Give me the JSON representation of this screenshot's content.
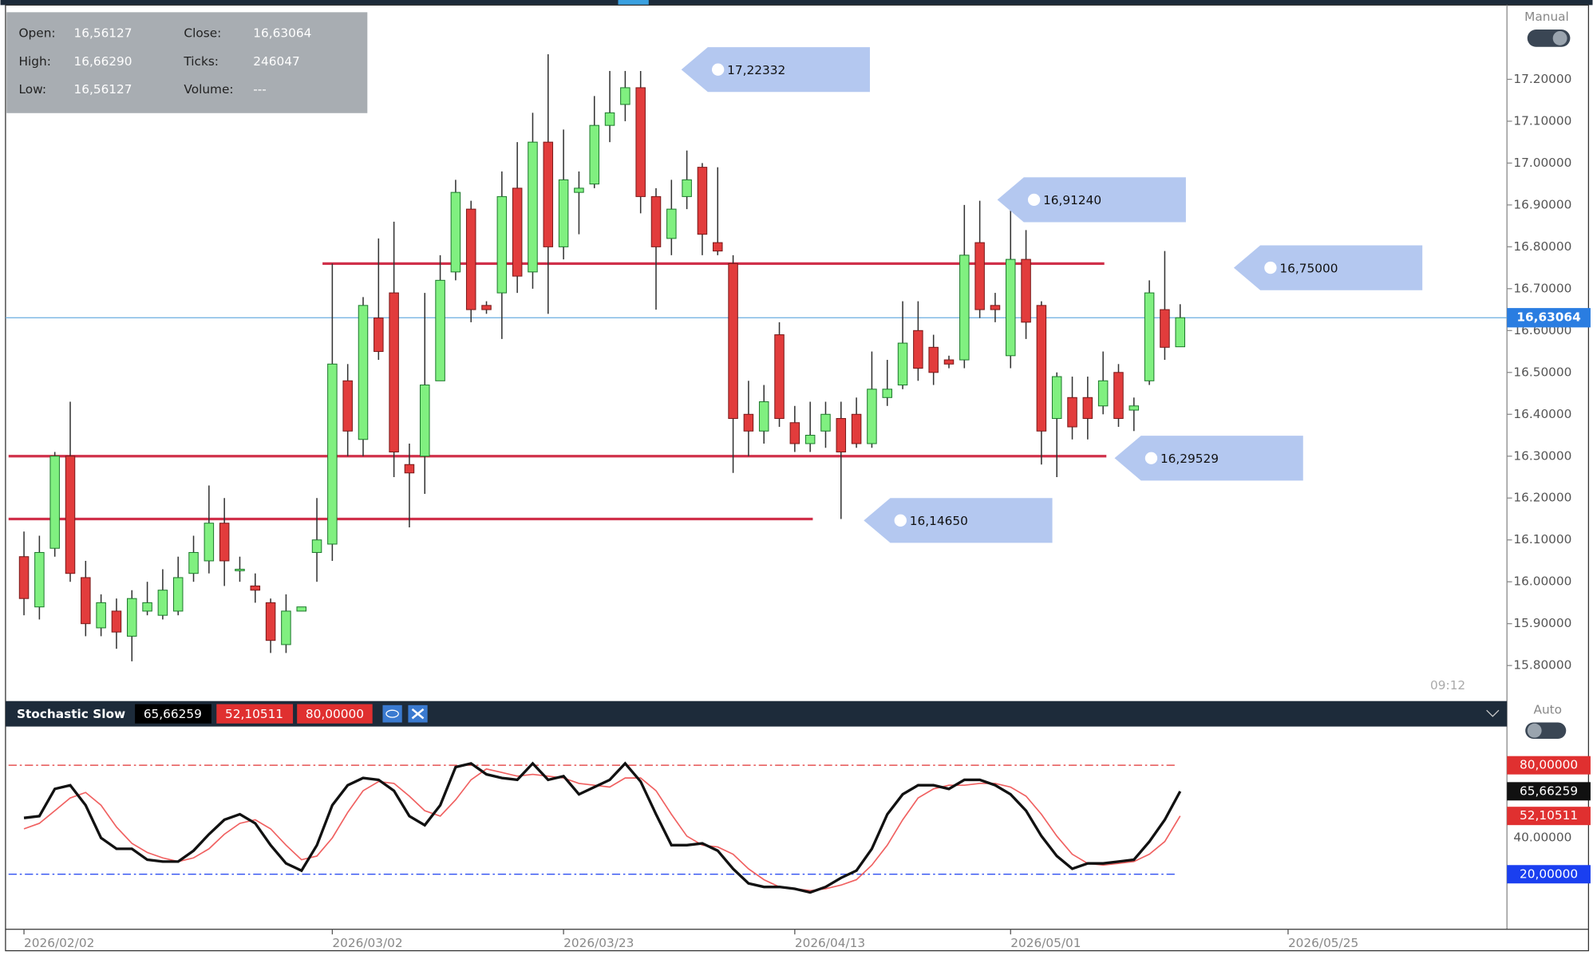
{
  "info_panel": {
    "labels": [
      "Open:",
      "High:",
      "Low:",
      "Close:",
      "Ticks:",
      "Volume:"
    ],
    "values": [
      "16,56127",
      "16,66290",
      "16,56127",
      "16,63064",
      "246047",
      "---"
    ]
  },
  "controls": {
    "manual": "Manual",
    "auto": "Auto",
    "time": "09:12"
  },
  "chart_data": [
    {
      "type": "candlestick",
      "open": [
        16.06,
        15.94,
        16.08,
        16.3,
        16.01,
        15.89,
        15.93,
        15.87,
        15.93,
        15.92,
        15.93,
        16.02,
        16.05,
        16.14,
        16.03,
        15.99,
        15.95,
        15.85,
        15.93,
        16.07,
        16.09,
        16.48,
        16.34,
        16.63,
        16.69,
        16.28,
        16.3,
        16.48,
        16.74,
        16.89,
        16.66,
        16.69,
        16.94,
        16.74,
        17.05,
        16.8,
        16.93,
        16.95,
        17.09,
        17.14,
        17.18,
        16.92,
        16.82,
        16.92,
        16.99,
        16.81,
        16.76,
        16.4,
        16.36,
        16.59,
        16.38,
        16.33,
        16.36,
        16.39,
        16.4,
        16.33,
        16.44,
        16.47,
        16.6,
        16.56,
        16.53,
        16.53,
        16.81,
        16.66,
        16.54,
        16.77,
        16.66,
        16.39,
        16.44,
        16.44,
        16.42,
        16.5,
        16.41,
        16.48,
        16.65,
        16.56127
      ],
      "high": [
        16.12,
        16.11,
        16.31,
        16.43,
        16.05,
        15.97,
        15.96,
        15.98,
        16.0,
        16.03,
        16.06,
        16.11,
        16.23,
        16.2,
        16.06,
        16.02,
        15.96,
        15.97,
        15.94,
        16.2,
        16.76,
        16.52,
        16.68,
        16.82,
        16.86,
        16.33,
        16.69,
        16.78,
        16.96,
        16.91,
        16.67,
        16.98,
        17.05,
        17.12,
        17.26,
        17.08,
        16.98,
        17.16,
        17.22,
        17.22,
        17.22,
        16.94,
        16.96,
        17.03,
        17.0,
        16.99,
        16.78,
        16.48,
        16.47,
        16.62,
        16.42,
        16.43,
        16.43,
        16.43,
        16.44,
        16.55,
        16.53,
        16.67,
        16.67,
        16.59,
        16.54,
        16.9,
        16.91,
        16.69,
        16.89,
        16.84,
        16.67,
        16.5,
        16.49,
        16.49,
        16.55,
        16.52,
        16.44,
        16.72,
        16.79,
        16.6629
      ],
      "low": [
        15.92,
        15.91,
        16.06,
        16.0,
        15.87,
        15.87,
        15.84,
        15.81,
        15.92,
        15.91,
        15.92,
        16.0,
        16.02,
        15.99,
        16.0,
        15.95,
        15.83,
        15.83,
        15.93,
        16.0,
        16.05,
        16.3,
        16.3,
        16.53,
        16.25,
        16.13,
        16.21,
        16.48,
        16.72,
        16.62,
        16.64,
        16.58,
        16.69,
        16.7,
        16.64,
        16.77,
        16.83,
        16.94,
        17.05,
        17.1,
        16.88,
        16.65,
        16.78,
        16.89,
        16.78,
        16.78,
        16.26,
        16.3,
        16.33,
        16.37,
        16.31,
        16.31,
        16.32,
        16.15,
        16.32,
        16.32,
        16.42,
        16.46,
        16.48,
        16.47,
        16.51,
        16.51,
        16.63,
        16.62,
        16.51,
        16.58,
        16.28,
        16.25,
        16.34,
        16.34,
        16.4,
        16.37,
        16.36,
        16.47,
        16.53,
        16.56127
      ],
      "close": [
        15.96,
        16.07,
        16.3,
        16.02,
        15.9,
        15.95,
        15.88,
        15.96,
        15.95,
        15.98,
        16.01,
        16.07,
        16.14,
        16.05,
        16.03,
        15.98,
        15.86,
        15.93,
        15.94,
        16.1,
        16.52,
        16.36,
        16.66,
        16.55,
        16.31,
        16.26,
        16.47,
        16.72,
        16.93,
        16.65,
        16.65,
        16.92,
        16.73,
        17.05,
        16.8,
        16.96,
        16.94,
        17.09,
        17.12,
        17.18,
        16.92,
        16.8,
        16.89,
        16.96,
        16.83,
        16.79,
        16.39,
        16.36,
        16.43,
        16.39,
        16.33,
        16.35,
        16.4,
        16.31,
        16.33,
        16.46,
        16.46,
        16.57,
        16.51,
        16.5,
        16.52,
        16.78,
        16.65,
        16.65,
        16.77,
        16.62,
        16.36,
        16.49,
        16.37,
        16.39,
        16.48,
        16.39,
        16.42,
        16.69,
        16.56,
        16.63064
      ],
      "up_color": "#80f080",
      "down_color": "#e23c3c",
      "xlim": [
        -1,
        96
      ],
      "xticks": [
        {
          "value": 0,
          "label": "2026/02/02"
        },
        {
          "value": 20,
          "label": "2026/03/02"
        },
        {
          "value": 35,
          "label": "2026/03/23"
        },
        {
          "value": 50,
          "label": "2026/04/13"
        },
        {
          "value": 64,
          "label": "2026/05/01"
        },
        {
          "value": 82,
          "label": "2026/05/25"
        }
      ],
      "ylim": [
        15.72,
        17.37
      ],
      "yticks": [
        {
          "value": 15.8,
          "label": "15.80000"
        },
        {
          "value": 15.9,
          "label": "15.90000"
        },
        {
          "value": 16,
          "label": "16.00000"
        },
        {
          "value": 16.1,
          "label": "16.10000"
        },
        {
          "value": 16.2,
          "label": "16.20000"
        },
        {
          "value": 16.3,
          "label": "16.30000"
        },
        {
          "value": 16.4,
          "label": "16.40000"
        },
        {
          "value": 16.5,
          "label": "16.50000"
        },
        {
          "value": 16.6,
          "label": "16.60000"
        },
        {
          "value": 16.7,
          "label": "16.70000"
        },
        {
          "value": 16.8,
          "label": "16.80000"
        },
        {
          "value": 16.9,
          "label": "16.90000"
        },
        {
          "value": 17,
          "label": "17.00000"
        },
        {
          "value": 17.1,
          "label": "17.10000"
        },
        {
          "value": 17.2,
          "label": "17.20000"
        }
      ],
      "levels": [
        16.76,
        16.3,
        16.15
      ],
      "level_color": "#d0304a",
      "last_price": {
        "value": 16.63064,
        "label": "16,63064",
        "color": "#2a7de1"
      },
      "annotations": [
        {
          "value": 17.22332,
          "label": "17,22332"
        },
        {
          "value": 16.9124,
          "label": "16,91240"
        },
        {
          "value": 16.75,
          "label": "16,75000"
        },
        {
          "value": 16.29529,
          "label": "16,29529"
        },
        {
          "value": 16.1465,
          "label": "16,14650"
        }
      ]
    },
    {
      "type": "line",
      "title": "Stochastic Slow",
      "series": [
        {
          "color": "#111111",
          "last_label": "65,66259",
          "values": [
            51,
            52,
            67,
            69,
            58,
            40,
            34,
            34,
            28,
            27,
            27,
            33,
            42,
            50,
            53,
            48,
            36,
            26,
            22,
            36,
            58,
            69,
            73,
            72,
            66,
            52,
            47,
            58,
            79,
            81,
            75,
            73,
            72,
            81,
            72,
            74,
            64,
            68,
            72,
            81,
            71,
            53,
            36,
            36,
            37,
            33,
            23,
            15,
            13,
            13,
            12,
            10,
            13,
            18,
            22,
            34,
            53,
            64,
            69,
            69,
            67,
            72,
            72,
            69,
            64,
            55,
            41,
            30,
            23,
            26,
            26,
            27,
            28,
            38,
            50,
            65.66259
          ]
        },
        {
          "color": "#f06060",
          "last_label": "52,10511",
          "values": [
            45,
            48,
            55,
            62,
            65,
            58,
            46,
            37,
            32,
            29,
            27,
            29,
            34,
            42,
            48,
            50,
            45,
            36,
            28,
            30,
            40,
            54,
            66,
            71,
            70,
            63,
            55,
            52,
            61,
            72,
            78,
            76,
            74,
            75,
            74,
            73,
            70,
            69,
            68,
            73,
            73,
            66,
            53,
            41,
            36,
            35,
            31,
            23,
            17,
            13,
            12,
            11,
            12,
            14,
            17,
            25,
            36,
            50,
            62,
            67,
            69,
            69,
            70,
            70,
            68,
            63,
            53,
            41,
            31,
            26,
            25,
            26,
            27,
            31,
            38,
            52.10511
          ]
        }
      ],
      "ylim": [
        -9.2,
        100.2
      ],
      "yticks": [
        {
          "value": 40,
          "label": "40.00000"
        }
      ],
      "levels": [
        {
          "value": 80,
          "label": "80,00000",
          "color": "#e03030"
        },
        {
          "value": 20,
          "label": "20,00000",
          "color": "#1a3ff0"
        }
      ]
    }
  ]
}
